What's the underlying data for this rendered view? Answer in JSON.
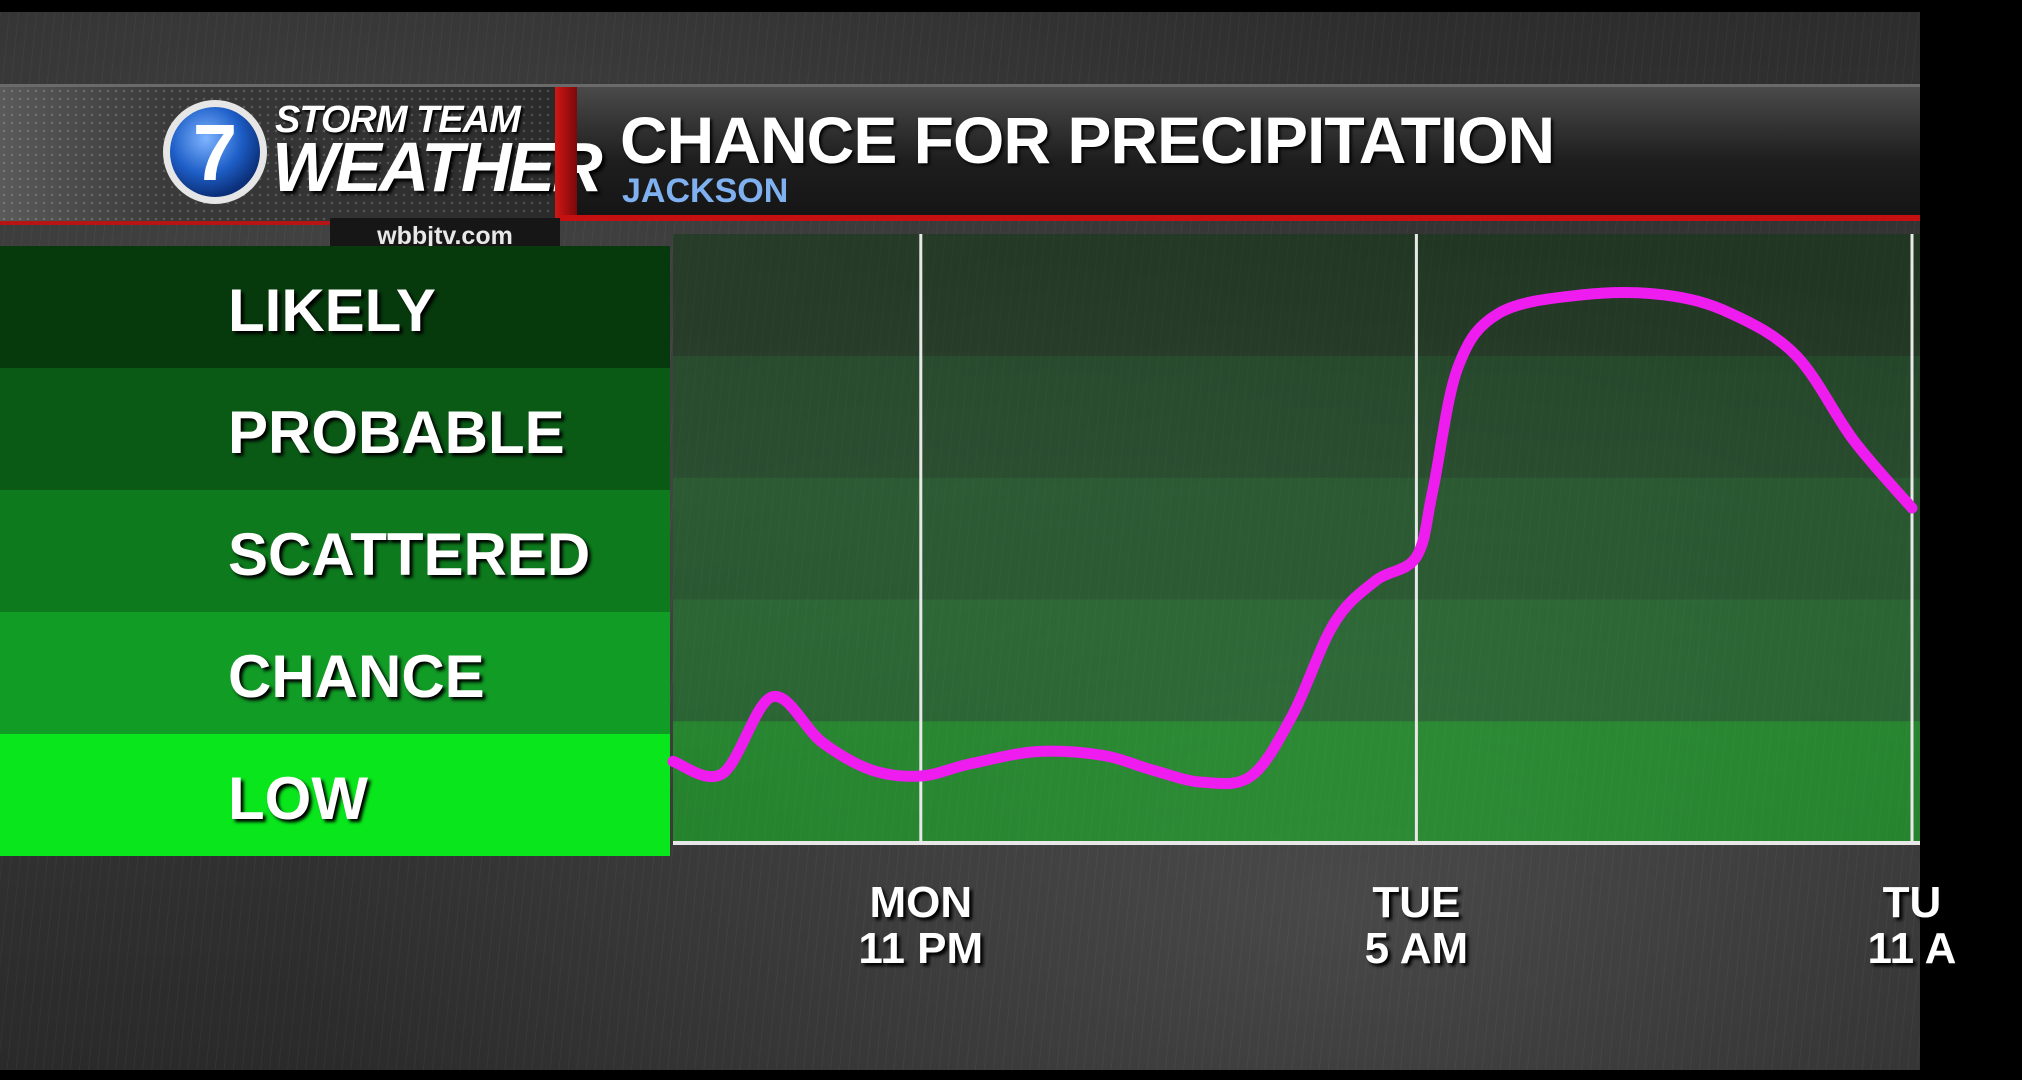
{
  "brand": {
    "logo_numeral": "7",
    "top_text": "STORM TEAM",
    "main_text": "WEATHER",
    "website": "wbbjtv.com"
  },
  "header": {
    "title": "CHANCE FOR PRECIPITATION",
    "subtitle": "JACKSON"
  },
  "colors": {
    "line": "#ee1cee",
    "likely": "#063a0c",
    "probable": "#0a5a16",
    "scattered": "#0d7a1d",
    "chance": "#119c26",
    "low": "#09e61c",
    "header_red": "#c41010"
  },
  "chart_data": {
    "type": "line",
    "title": "CHANCE FOR PRECIPITATION",
    "subtitle": "JACKSON",
    "xlabel": "",
    "ylabel": "",
    "y_categories": [
      "LOW",
      "CHANCE",
      "SCATTERED",
      "PROBABLE",
      "LIKELY"
    ],
    "ylim": [
      0,
      5
    ],
    "x_ticks": [
      {
        "x": 3,
        "line1": "MON",
        "line2": "11 PM"
      },
      {
        "x": 9,
        "line1": "TUE",
        "line2": "5 AM"
      },
      {
        "x": 15,
        "line1": "TU",
        "line2": "11 A"
      }
    ],
    "xlim": [
      0,
      15
    ],
    "grid": "vertical lines at x ticks",
    "series": [
      {
        "x": [
          0,
          0.6,
          1.2,
          1.8,
          2.4,
          3.0,
          3.6,
          4.4,
          5.2,
          5.8,
          6.4,
          7.0,
          7.5,
          8.0,
          8.5,
          9.0,
          9.2,
          9.5,
          10.0,
          11.0,
          12.0,
          12.8,
          13.6,
          14.3,
          15.0
        ],
        "y": [
          0.67,
          0.57,
          1.2,
          0.83,
          0.6,
          0.55,
          0.65,
          0.75,
          0.72,
          0.6,
          0.5,
          0.55,
          1.05,
          1.8,
          2.15,
          2.35,
          2.9,
          3.9,
          4.35,
          4.5,
          4.5,
          4.35,
          4.0,
          3.3,
          2.75
        ]
      }
    ]
  }
}
